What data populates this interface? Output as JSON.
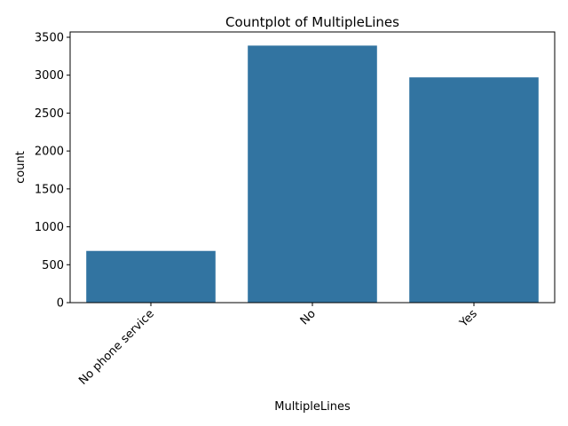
{
  "chart_data": {
    "type": "bar",
    "title": "Countplot of MultipleLines",
    "xlabel": "MultipleLines",
    "ylabel": "count",
    "categories": [
      "No phone service",
      "No",
      "Yes"
    ],
    "values": [
      682,
      3390,
      2971
    ],
    "ylim": [
      0,
      3570
    ],
    "yticks": [
      0,
      500,
      1000,
      1500,
      2000,
      2500,
      3000,
      3500
    ],
    "xtick_rotation_deg": 45,
    "bar_color": "#3274a1",
    "grid": false,
    "legend": "none"
  }
}
